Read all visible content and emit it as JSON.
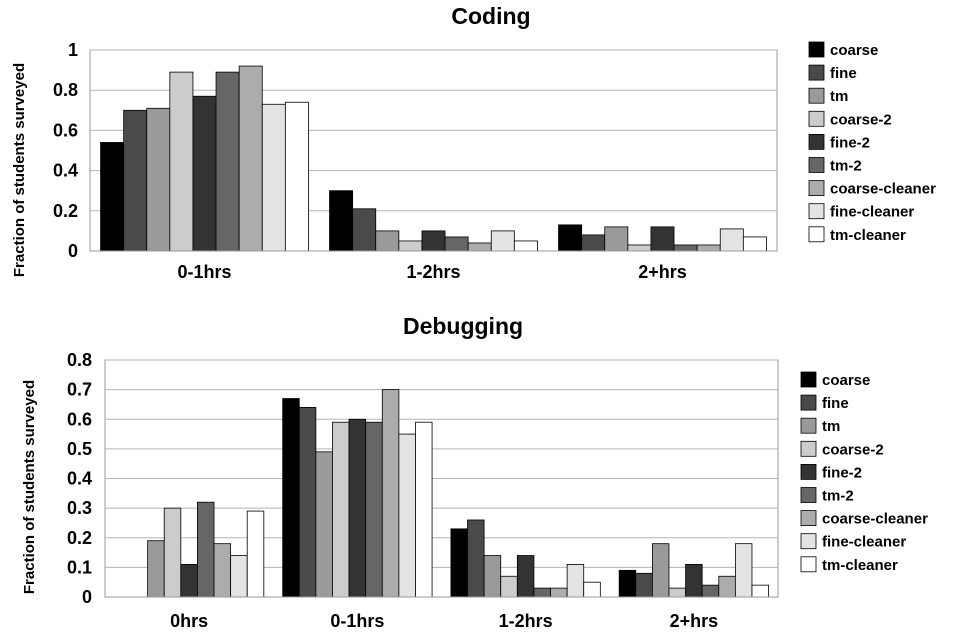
{
  "chart_data": [
    {
      "type": "bar",
      "title": "Coding",
      "ylabel": "Fraction of students surveyed",
      "xlabel": "",
      "ylim": [
        0,
        1
      ],
      "yticks": [
        "0",
        "0.2",
        "0.4",
        "0.6",
        "0.8",
        "1"
      ],
      "ytick_values": [
        0,
        0.2,
        0.4,
        0.6,
        0.8,
        1
      ],
      "grid": true,
      "legend_position": "right",
      "categories": [
        "0-1hrs",
        "1-2hrs",
        "2+hrs"
      ],
      "series": [
        {
          "name": "coarse",
          "color": "#000000",
          "values": [
            0.54,
            0.3,
            0.13
          ]
        },
        {
          "name": "fine",
          "color": "#4a4a4a",
          "values": [
            0.7,
            0.21,
            0.08
          ]
        },
        {
          "name": "tm",
          "color": "#9a9a9a",
          "values": [
            0.71,
            0.1,
            0.12
          ]
        },
        {
          "name": "coarse-2",
          "color": "#cccccc",
          "values": [
            0.89,
            0.05,
            0.03
          ]
        },
        {
          "name": "fine-2",
          "color": "#333333",
          "values": [
            0.77,
            0.1,
            0.12
          ]
        },
        {
          "name": "tm-2",
          "color": "#666666",
          "values": [
            0.89,
            0.07,
            0.03
          ]
        },
        {
          "name": "coarse-cleaner",
          "color": "#acacac",
          "values": [
            0.92,
            0.04,
            0.03
          ]
        },
        {
          "name": "fine-cleaner",
          "color": "#e3e3e3",
          "values": [
            0.73,
            0.1,
            0.11
          ]
        },
        {
          "name": "tm-cleaner",
          "color": "#ffffff",
          "values": [
            0.74,
            0.05,
            0.07
          ]
        }
      ]
    },
    {
      "type": "bar",
      "title": "Debugging",
      "ylabel": "Fraction of students surveyed",
      "xlabel": "",
      "ylim": [
        0,
        0.8
      ],
      "yticks": [
        "0",
        "0.1",
        "0.2",
        "0.3",
        "0.4",
        "0.5",
        "0.6",
        "0.7",
        "0.8"
      ],
      "ytick_values": [
        0,
        0.1,
        0.2,
        0.3,
        0.4,
        0.5,
        0.6,
        0.7,
        0.8
      ],
      "grid": true,
      "legend_position": "right",
      "categories": [
        "0hrs",
        "0-1hrs",
        "1-2hrs",
        "2+hrs"
      ],
      "series": [
        {
          "name": "coarse",
          "color": "#000000",
          "values": [
            0,
            0.67,
            0.23,
            0.09
          ]
        },
        {
          "name": "fine",
          "color": "#4a4a4a",
          "values": [
            0,
            0.64,
            0.26,
            0.08
          ]
        },
        {
          "name": "tm",
          "color": "#9a9a9a",
          "values": [
            0.19,
            0.49,
            0.14,
            0.18
          ]
        },
        {
          "name": "coarse-2",
          "color": "#cccccc",
          "values": [
            0.3,
            0.59,
            0.07,
            0.03
          ]
        },
        {
          "name": "fine-2",
          "color": "#333333",
          "values": [
            0.11,
            0.6,
            0.14,
            0.11
          ]
        },
        {
          "name": "tm-2",
          "color": "#666666",
          "values": [
            0.32,
            0.59,
            0.03,
            0.04
          ]
        },
        {
          "name": "coarse-cleaner",
          "color": "#acacac",
          "values": [
            0.18,
            0.7,
            0.03,
            0.07
          ]
        },
        {
          "name": "fine-cleaner",
          "color": "#e3e3e3",
          "values": [
            0.14,
            0.55,
            0.11,
            0.18
          ]
        },
        {
          "name": "tm-cleaner",
          "color": "#ffffff",
          "values": [
            0.29,
            0.59,
            0.05,
            0.04
          ]
        }
      ]
    }
  ]
}
